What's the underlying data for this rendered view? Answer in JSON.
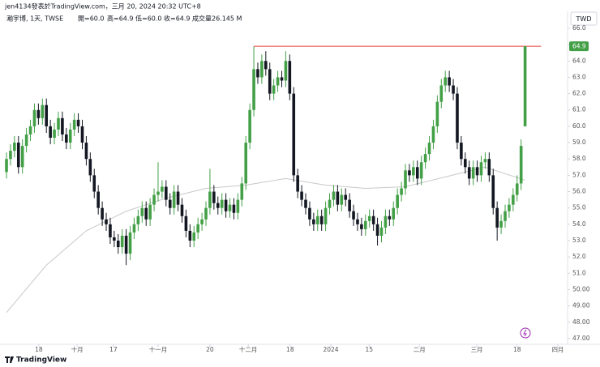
{
  "header": {
    "byline": "jen4134發表於TradingView.com，三月 20, 2024 20:32 UTC+8",
    "symbol": "瀚宇博, 1天, TWSE",
    "open": "開=60.0",
    "high": "高=64.9",
    "low": "低=60.0",
    "close": "收=64.9",
    "volume": "成交量26.145 M",
    "currency": "TWD",
    "brand": "TradingView"
  },
  "chart_data": {
    "type": "candlestick",
    "up_color": "#43a047",
    "down_color": "#131722",
    "ma_color": "#c8c8c8",
    "line_color": "#e53935",
    "xlim": [
      -1.63,
      140.65
    ],
    "ylim": [
      46.65,
      67.04
    ],
    "yticks": [
      {
        "value": 66,
        "label": "66.0"
      },
      {
        "value": 65,
        "label": "65.0"
      },
      {
        "value": 64,
        "label": "64.0"
      },
      {
        "value": 63,
        "label": "63.0"
      },
      {
        "value": 62,
        "label": "62.0"
      },
      {
        "value": 61,
        "label": "61.0"
      },
      {
        "value": 60,
        "label": "60.0"
      },
      {
        "value": 59,
        "label": "59.0"
      },
      {
        "value": 58,
        "label": "58.0"
      },
      {
        "value": 57,
        "label": "57.0"
      },
      {
        "value": 56,
        "label": "56.0"
      },
      {
        "value": 55,
        "label": "55.0"
      },
      {
        "value": 54,
        "label": "54.0"
      },
      {
        "value": 53,
        "label": "53.0"
      },
      {
        "value": 52,
        "label": "52.0"
      },
      {
        "value": 51,
        "label": "51.0"
      },
      {
        "value": 50,
        "label": "50.00"
      },
      {
        "value": 49,
        "label": "49.00"
      },
      {
        "value": 48,
        "label": "48.00"
      },
      {
        "value": 47,
        "label": "47.00"
      }
    ],
    "xticks": [
      {
        "value": 8.1,
        "label": "18"
      },
      {
        "value": 17.7,
        "label": "十月"
      },
      {
        "value": 26.8,
        "label": "17"
      },
      {
        "value": 38,
        "label": "十一月"
      },
      {
        "value": 51,
        "label": "20"
      },
      {
        "value": 60.6,
        "label": "十二月"
      },
      {
        "value": 71.1,
        "label": "18"
      },
      {
        "value": 81.3,
        "label": "2024"
      },
      {
        "value": 90.9,
        "label": "15"
      },
      {
        "value": 103.5,
        "label": "二月"
      },
      {
        "value": 117.9,
        "label": "三月"
      },
      {
        "value": 128,
        "label": "18"
      },
      {
        "value": 138.2,
        "label": "四月"
      }
    ],
    "hline": {
      "value": 64.9,
      "x": [
        62,
        134
      ]
    },
    "open": [
      57.2,
      58.0,
      58.5,
      59.0,
      57.5,
      58.8,
      59.5,
      60.0,
      61.0,
      60.5,
      61.3,
      60.0,
      59.3,
      59.8,
      60.5,
      59.5,
      59.0,
      59.8,
      60.4,
      60.0,
      59.0,
      58.0,
      57.0,
      56.0,
      55.0,
      54.3,
      54.0,
      53.2,
      53.0,
      52.6,
      53.3,
      52.2,
      53.5,
      54.0,
      54.5,
      55.0,
      54.3,
      55.2,
      55.8,
      56.0,
      56.3,
      55.5,
      55.0,
      56.0,
      55.2,
      54.5,
      53.6,
      53.0,
      53.5,
      54.0,
      54.3,
      55.0,
      56.0,
      55.3,
      55.0,
      55.5,
      54.8,
      55.2,
      54.7,
      55.5,
      56.5,
      59.0,
      61.0,
      63.5,
      63.0,
      64.0,
      63.5,
      62.0,
      62.5,
      63.0,
      62.8,
      64.0,
      62.0,
      57.0,
      56.0,
      55.5,
      55.0,
      54.3,
      54.0,
      54.5,
      54.0,
      55.0,
      55.5,
      56.0,
      55.2,
      55.8,
      55.5,
      54.8,
      54.3,
      54.0,
      53.7,
      54.2,
      54.5,
      54.0,
      53.3,
      53.8,
      54.5,
      54.3,
      55.0,
      55.8,
      56.2,
      57.3,
      57.0,
      57.5,
      56.8,
      57.8,
      58.3,
      59.0,
      60.0,
      61.5,
      62.5,
      63.0,
      62.5,
      62.0,
      59.0,
      58.0,
      57.5,
      56.8,
      57.5,
      57.0,
      57.8,
      58.0,
      57.0,
      55.0,
      53.8,
      54.2,
      54.8,
      55.2,
      55.8,
      56.5,
      60.0
    ],
    "high": [
      58.4,
      58.9,
      59.4,
      59.4,
      59.2,
      59.9,
      60.4,
      61.4,
      61.4,
      61.7,
      61.7,
      60.4,
      60.2,
      60.9,
      60.9,
      59.9,
      60.2,
      60.8,
      60.8,
      60.4,
      59.4,
      58.4,
      57.4,
      56.4,
      55.4,
      54.7,
      54.4,
      53.6,
      53.4,
      53.7,
      53.7,
      53.9,
      54.4,
      54.9,
      55.4,
      55.4,
      55.6,
      56.2,
      57.8,
      56.7,
      56.7,
      55.9,
      56.4,
      56.4,
      55.6,
      54.9,
      54.0,
      53.9,
      54.4,
      54.7,
      55.4,
      57.4,
      56.4,
      55.7,
      55.9,
      55.9,
      55.6,
      55.6,
      55.9,
      56.9,
      59.4,
      61.4,
      64.9,
      63.9,
      64.4,
      64.6,
      63.9,
      62.9,
      63.4,
      63.4,
      64.6,
      64.4,
      62.4,
      57.4,
      56.4,
      55.9,
      55.4,
      54.7,
      54.9,
      54.9,
      55.4,
      55.9,
      56.4,
      56.4,
      56.2,
      56.2,
      55.9,
      55.2,
      54.7,
      54.4,
      54.6,
      54.9,
      54.9,
      54.4,
      54.2,
      54.9,
      54.9,
      55.4,
      56.2,
      56.6,
      57.7,
      57.7,
      57.9,
      57.9,
      58.2,
      58.7,
      59.4,
      60.4,
      61.9,
      62.9,
      63.4,
      63.4,
      62.9,
      62.4,
      59.4,
      58.4,
      57.9,
      57.9,
      57.9,
      58.2,
      58.4,
      58.4,
      57.4,
      55.4,
      54.6,
      55.2,
      55.6,
      56.2,
      57.0,
      59.2,
      64.9
    ],
    "low": [
      56.8,
      57.6,
      58.1,
      57.1,
      57.1,
      58.4,
      59.1,
      59.6,
      60.1,
      60.1,
      59.6,
      58.9,
      58.9,
      59.4,
      59.1,
      58.6,
      58.6,
      59.4,
      59.6,
      58.6,
      57.6,
      56.6,
      55.6,
      54.6,
      53.9,
      53.6,
      52.8,
      52.6,
      52.2,
      52.2,
      51.5,
      51.8,
      53.1,
      53.6,
      54.1,
      53.9,
      53.9,
      54.8,
      55.4,
      55.6,
      55.1,
      54.6,
      54.6,
      54.8,
      54.1,
      53.2,
      52.6,
      52.6,
      53.1,
      53.6,
      53.9,
      54.6,
      54.9,
      54.6,
      54.6,
      54.4,
      54.4,
      54.3,
      54.3,
      55.1,
      56.1,
      58.6,
      60.6,
      62.6,
      62.6,
      63.1,
      61.6,
      61.6,
      62.1,
      62.4,
      62.4,
      61.6,
      56.6,
      55.6,
      55.1,
      54.6,
      53.9,
      53.6,
      53.6,
      53.6,
      53.6,
      54.6,
      55.1,
      54.8,
      54.8,
      55.1,
      54.4,
      53.9,
      53.6,
      53.3,
      53.3,
      53.8,
      53.6,
      52.7,
      52.9,
      53.4,
      53.9,
      53.9,
      54.6,
      55.4,
      55.8,
      56.6,
      56.6,
      56.4,
      56.4,
      57.4,
      57.9,
      58.6,
      59.6,
      61.1,
      62.1,
      62.1,
      61.6,
      58.6,
      57.6,
      57.1,
      56.4,
      56.4,
      56.6,
      56.6,
      57.4,
      56.6,
      54.6,
      53.0,
      53.4,
      53.8,
      54.4,
      54.8,
      55.4,
      56.1,
      60.0
    ],
    "close": [
      58.0,
      58.5,
      59.0,
      57.5,
      58.8,
      59.5,
      60.0,
      61.0,
      60.5,
      61.3,
      60.0,
      59.3,
      59.8,
      60.5,
      59.5,
      59.0,
      59.8,
      60.4,
      60.0,
      59.0,
      58.0,
      57.0,
      56.0,
      55.0,
      54.3,
      54.0,
      53.2,
      53.0,
      52.6,
      53.3,
      52.2,
      53.5,
      54.0,
      54.5,
      55.0,
      54.3,
      55.2,
      55.8,
      56.0,
      56.3,
      55.5,
      55.0,
      56.0,
      55.2,
      54.5,
      53.6,
      53.0,
      53.5,
      54.0,
      54.3,
      55.0,
      56.0,
      55.3,
      55.0,
      55.5,
      54.8,
      55.2,
      54.7,
      55.5,
      56.5,
      59.0,
      61.0,
      63.5,
      63.0,
      64.0,
      63.5,
      62.0,
      62.5,
      63.0,
      62.8,
      64.0,
      62.0,
      57.0,
      56.0,
      55.5,
      55.0,
      54.3,
      54.0,
      54.5,
      54.0,
      55.0,
      55.5,
      56.0,
      55.2,
      55.8,
      55.5,
      54.8,
      54.3,
      54.0,
      53.7,
      54.2,
      54.5,
      54.0,
      53.3,
      53.8,
      54.5,
      54.3,
      55.0,
      55.8,
      56.2,
      57.3,
      57.0,
      57.5,
      56.8,
      57.8,
      58.3,
      59.0,
      60.0,
      61.5,
      62.5,
      63.0,
      62.5,
      62.0,
      59.0,
      58.0,
      57.5,
      56.8,
      57.5,
      57.0,
      57.8,
      58.0,
      57.0,
      55.0,
      53.8,
      54.2,
      54.8,
      55.2,
      55.8,
      56.5,
      58.8,
      64.9
    ],
    "ma": {
      "x": [
        0,
        10,
        20,
        30,
        40,
        50,
        60,
        70,
        80,
        90,
        100,
        110,
        120,
        130
      ],
      "values": [
        48.6,
        51.5,
        53.6,
        54.8,
        55.6,
        56.2,
        56.4,
        56.8,
        56.4,
        56.2,
        56.3,
        56.9,
        57.5,
        56.7
      ]
    }
  }
}
